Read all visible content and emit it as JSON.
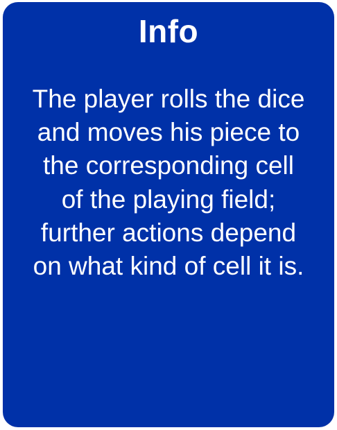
{
  "card": {
    "title": "Info",
    "body": "The player rolls the dice and moves his piece to the corresponding cell of the playing field; further actions depend on what kind of cell it is.",
    "background_color": "#0031a8",
    "text_color": "#ffffff"
  }
}
